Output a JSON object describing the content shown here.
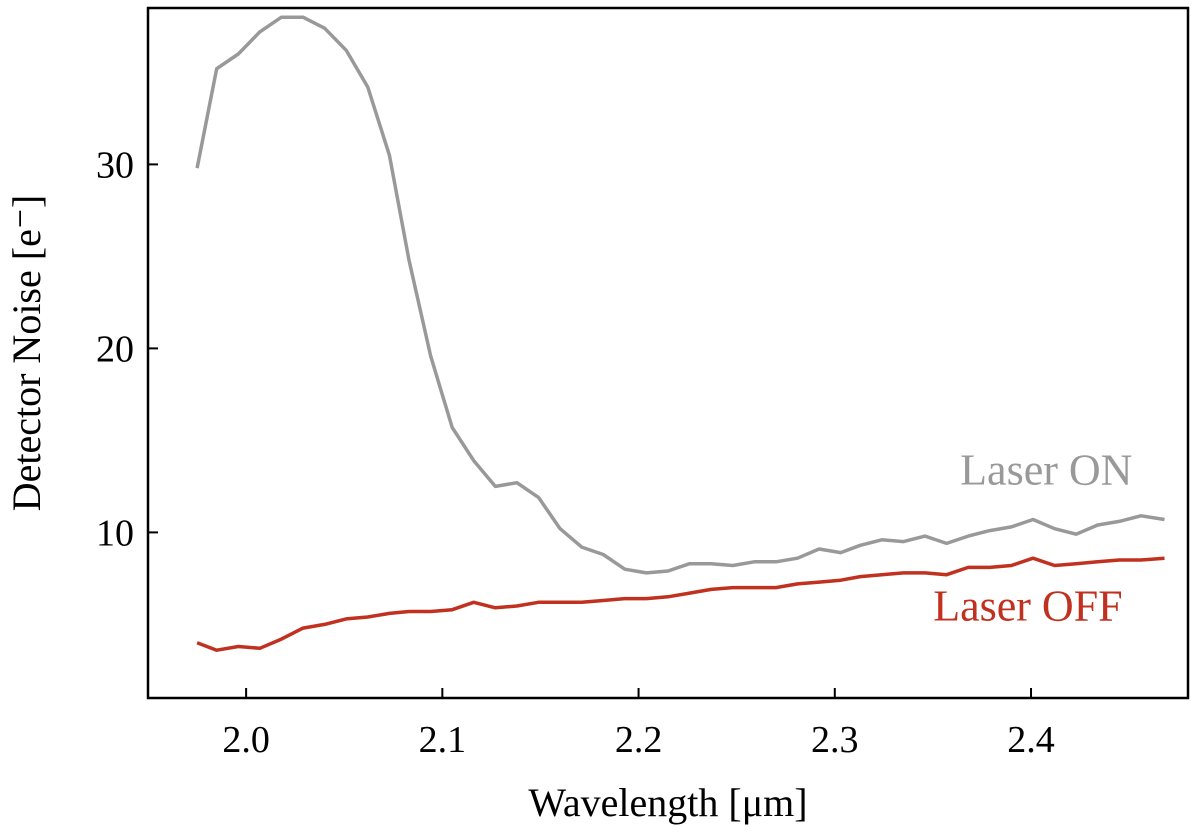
{
  "chart_data": {
    "type": "line",
    "title": "",
    "xlabel": "Wavelength [μm]",
    "ylabel": "Detector Noise [e⁻]",
    "xlim": [
      1.95,
      2.48
    ],
    "ylim": [
      1.0,
      38.5
    ],
    "xticks": [
      2.0,
      2.1,
      2.2,
      2.3,
      2.4
    ],
    "xtick_labels": [
      "2.0",
      "2.1",
      "2.2",
      "2.3",
      "2.4"
    ],
    "yticks": [
      10,
      20,
      30
    ],
    "ytick_labels": [
      "10",
      "20",
      "30"
    ],
    "grid": false,
    "legend": "inline labels at right",
    "series": [
      {
        "name": "Laser ON",
        "color": "#999999",
        "label_anchor": [
          2.415,
          12.6
        ],
        "x": [
          1.975,
          1.985,
          1.996,
          2.007,
          2.018,
          2.029,
          2.04,
          2.051,
          2.062,
          2.073,
          2.083,
          2.094,
          2.105,
          2.116,
          2.127,
          2.138,
          2.149,
          2.16,
          2.171,
          2.182,
          2.193,
          2.204,
          2.215,
          2.226,
          2.237,
          2.248,
          2.259,
          2.27,
          2.281,
          2.292,
          2.303,
          2.313,
          2.324,
          2.335,
          2.346,
          2.357,
          2.368,
          2.379,
          2.39,
          2.401,
          2.412,
          2.423,
          2.434,
          2.445,
          2.456,
          2.468
        ],
        "values": [
          29.8,
          35.2,
          36.0,
          37.2,
          38.0,
          38.0,
          37.4,
          36.2,
          34.2,
          30.5,
          24.8,
          19.6,
          15.7,
          13.9,
          12.5,
          12.7,
          11.9,
          10.2,
          9.2,
          8.8,
          8.0,
          7.8,
          7.9,
          8.3,
          8.3,
          8.2,
          8.4,
          8.4,
          8.6,
          9.1,
          8.9,
          9.3,
          9.6,
          9.5,
          9.8,
          9.4,
          9.8,
          10.1,
          10.3,
          10.7,
          10.2,
          9.9,
          10.4,
          10.6,
          10.9,
          10.7
        ]
      },
      {
        "name": "Laser OFF",
        "color": "#c0311f",
        "label_anchor": [
          2.41,
          5.2
        ],
        "x": [
          1.975,
          1.985,
          1.996,
          2.007,
          2.018,
          2.029,
          2.04,
          2.051,
          2.062,
          2.073,
          2.083,
          2.094,
          2.105,
          2.116,
          2.127,
          2.138,
          2.149,
          2.16,
          2.171,
          2.182,
          2.193,
          2.204,
          2.215,
          2.226,
          2.237,
          2.248,
          2.259,
          2.27,
          2.281,
          2.292,
          2.303,
          2.313,
          2.324,
          2.335,
          2.346,
          2.357,
          2.368,
          2.379,
          2.39,
          2.401,
          2.412,
          2.423,
          2.434,
          2.445,
          2.456,
          2.468
        ],
        "values": [
          4.0,
          3.6,
          3.8,
          3.7,
          4.2,
          4.8,
          5.0,
          5.3,
          5.4,
          5.6,
          5.7,
          5.7,
          5.8,
          6.2,
          5.9,
          6.0,
          6.2,
          6.2,
          6.2,
          6.3,
          6.4,
          6.4,
          6.5,
          6.7,
          6.9,
          7.0,
          7.0,
          7.0,
          7.2,
          7.3,
          7.4,
          7.6,
          7.7,
          7.8,
          7.8,
          7.7,
          8.1,
          8.1,
          8.2,
          8.6,
          8.2,
          8.3,
          8.4,
          8.5,
          8.5,
          8.6
        ]
      }
    ]
  }
}
